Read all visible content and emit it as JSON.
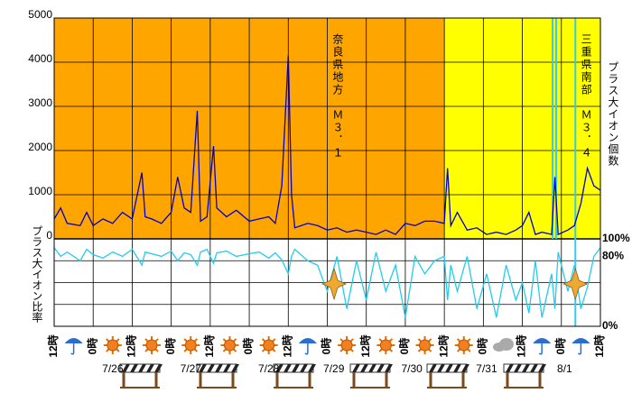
{
  "chart_data": [
    {
      "type": "line",
      "y_label": "プラス大イオン個数",
      "x": [
        0,
        2,
        4,
        8,
        10,
        12,
        15,
        18,
        21,
        24,
        27,
        28,
        30,
        33,
        36,
        38,
        40,
        42,
        44,
        45,
        47,
        49,
        50,
        53,
        56,
        60,
        63,
        66,
        68,
        70,
        72,
        73,
        74,
        78,
        81,
        84,
        87,
        90,
        93,
        96,
        99,
        102,
        105,
        108,
        111,
        114,
        117,
        120,
        121,
        122,
        124,
        127,
        130,
        133,
        136,
        139,
        142,
        144,
        146,
        148,
        150,
        153,
        154,
        155,
        158,
        160,
        162,
        164,
        166,
        168
      ],
      "series": [
        {
          "color": "#0000cc",
          "values": [
            450,
            700,
            350,
            300,
            600,
            300,
            450,
            350,
            600,
            450,
            1500,
            500,
            450,
            350,
            600,
            1400,
            700,
            600,
            2900,
            400,
            500,
            2100,
            700,
            500,
            650,
            400,
            450,
            500,
            350,
            1200,
            4150,
            1000,
            250,
            350,
            300,
            200,
            250,
            150,
            200,
            150,
            100,
            200,
            100,
            350,
            300,
            400,
            400,
            350,
            1600,
            300,
            600,
            200,
            250,
            100,
            150,
            100,
            200,
            300,
            600,
            100,
            150,
            100,
            1400,
            100,
            200,
            300,
            800,
            1600,
            1200,
            1100
          ]
        }
      ],
      "xlim": [
        0,
        168
      ],
      "ylim": [
        0,
        5000
      ],
      "yticks": [
        0,
        1000,
        2000,
        3000,
        4000,
        5000
      ],
      "grid": true,
      "regions": [
        {
          "from": 0,
          "to": 120,
          "color": "#ffa500"
        },
        {
          "from": 120,
          "to": 168,
          "color": "#ffff00"
        }
      ],
      "vlines": {
        "color": "#33ccee",
        "x": [
          153.3,
          154.4,
          160.3
        ]
      },
      "events": [
        {
          "x": 86.1,
          "label": "奈良県地方　Ｍ３．１"
        },
        {
          "x": 160.3,
          "label": "三重県南部　Ｍ３．４"
        }
      ]
    },
    {
      "type": "line",
      "y_label": "プラス大イオン比率",
      "x": [
        0,
        2,
        4,
        8,
        10,
        12,
        15,
        18,
        21,
        24,
        27,
        28,
        30,
        33,
        36,
        38,
        40,
        42,
        44,
        45,
        47,
        49,
        50,
        53,
        56,
        60,
        63,
        66,
        68,
        70,
        72,
        73,
        74,
        78,
        81,
        84,
        87,
        90,
        93,
        96,
        99,
        102,
        105,
        108,
        111,
        114,
        117,
        120,
        121,
        122,
        124,
        127,
        130,
        133,
        136,
        139,
        142,
        144,
        146,
        148,
        150,
        153,
        154,
        155,
        158,
        160,
        162,
        164,
        166,
        168
      ],
      "series": [
        {
          "color": "#22ccee",
          "values": [
            90,
            80,
            85,
            75,
            88,
            82,
            78,
            85,
            80,
            88,
            70,
            85,
            83,
            80,
            86,
            75,
            84,
            82,
            70,
            85,
            88,
            72,
            84,
            86,
            80,
            83,
            85,
            78,
            84,
            76,
            60,
            80,
            88,
            75,
            70,
            40,
            80,
            20,
            75,
            30,
            85,
            40,
            70,
            10,
            80,
            60,
            75,
            80,
            30,
            70,
            40,
            80,
            20,
            60,
            10,
            70,
            30,
            50,
            15,
            75,
            10,
            60,
            20,
            85,
            40,
            70,
            20,
            45,
            80,
            90
          ]
        }
      ],
      "xlim": [
        0,
        168
      ],
      "ylim": [
        0,
        100
      ],
      "yticks": [
        {
          "value": 0,
          "label": "0%"
        },
        {
          "value": 80,
          "label": "80%"
        },
        {
          "value": 100,
          "label": "100%"
        }
      ],
      "ygrid": [
        25,
        50,
        75
      ],
      "xticks": [
        {
          "value": 0,
          "label": "12時"
        },
        {
          "value": 12,
          "label": "0時"
        },
        {
          "value": 24,
          "label": "12時"
        },
        {
          "value": 36,
          "label": "0時"
        },
        {
          "value": 48,
          "label": "12時"
        },
        {
          "value": 60,
          "label": "0時"
        },
        {
          "value": 72,
          "label": "12時"
        },
        {
          "value": 84,
          "label": "0時"
        },
        {
          "value": 96,
          "label": "12時"
        },
        {
          "value": 108,
          "label": "0時"
        },
        {
          "value": 120,
          "label": "12時"
        },
        {
          "value": 132,
          "label": "0時"
        },
        {
          "value": 144,
          "label": "12時"
        },
        {
          "value": 156,
          "label": "0時"
        },
        {
          "value": 168,
          "label": "12時"
        }
      ],
      "date_labels": [
        {
          "value": 18,
          "label": "7/26"
        },
        {
          "value": 42,
          "label": "7/27"
        },
        {
          "value": 66,
          "label": "7/28"
        },
        {
          "value": 86,
          "label": "7/29"
        },
        {
          "value": 110,
          "label": "7/30"
        },
        {
          "value": 133,
          "label": "7/31"
        },
        {
          "value": 157,
          "label": "8/1"
        }
      ],
      "weather": [
        "rain",
        "sun",
        "sun",
        "sun",
        "sun",
        "sun",
        "rain",
        "sun",
        "sun",
        "sun",
        "sun",
        "cloud",
        "rain",
        "rain"
      ]
    }
  ]
}
